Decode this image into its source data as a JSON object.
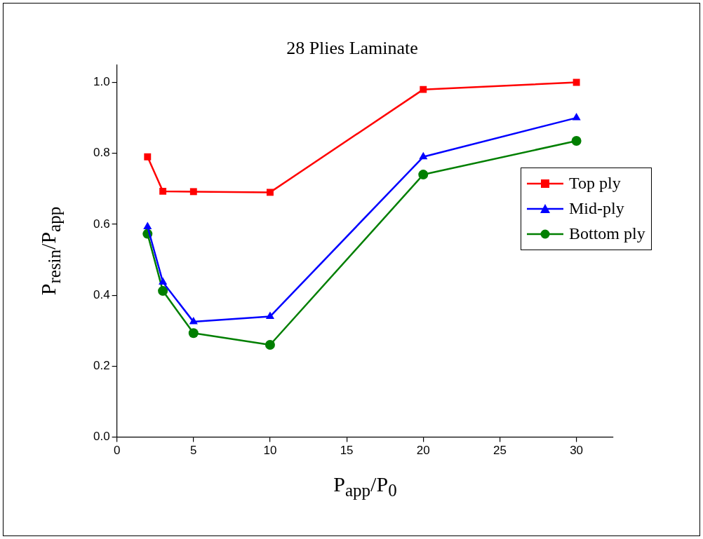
{
  "chart_data": {
    "type": "line",
    "title": "28 Plies Laminate",
    "xlabel": "P$_{app}$/P$_{0}$",
    "ylabel": "P$_{resin}$/P$_{app}$",
    "x": [
      2,
      3,
      5,
      10,
      20,
      30
    ],
    "series": [
      {
        "name": "Top ply",
        "color": "#ff0000",
        "marker": "square",
        "values": [
          0.79,
          0.693,
          0.692,
          0.69,
          0.98,
          1.0
        ]
      },
      {
        "name": "Mid-ply",
        "color": "#0000ff",
        "marker": "triangle",
        "values": [
          0.593,
          0.437,
          0.325,
          0.34,
          0.79,
          0.9
        ]
      },
      {
        "name": "Bottom ply",
        "color": "#007f00",
        "marker": "circle",
        "values": [
          0.573,
          0.412,
          0.293,
          0.26,
          0.74,
          0.835
        ]
      }
    ],
    "xlim": [
      0,
      32.4
    ],
    "xticks": [
      0,
      5,
      10,
      15,
      20,
      25,
      30
    ],
    "ylim": [
      0,
      1.05
    ],
    "yticks": [
      {
        "value": 0,
        "label": "0.0"
      },
      0.2,
      0.4,
      0.6,
      0.8,
      {
        "value": 1,
        "label": "1.0"
      }
    ],
    "grid": false,
    "legend": "right",
    "line_style": "solid"
  }
}
